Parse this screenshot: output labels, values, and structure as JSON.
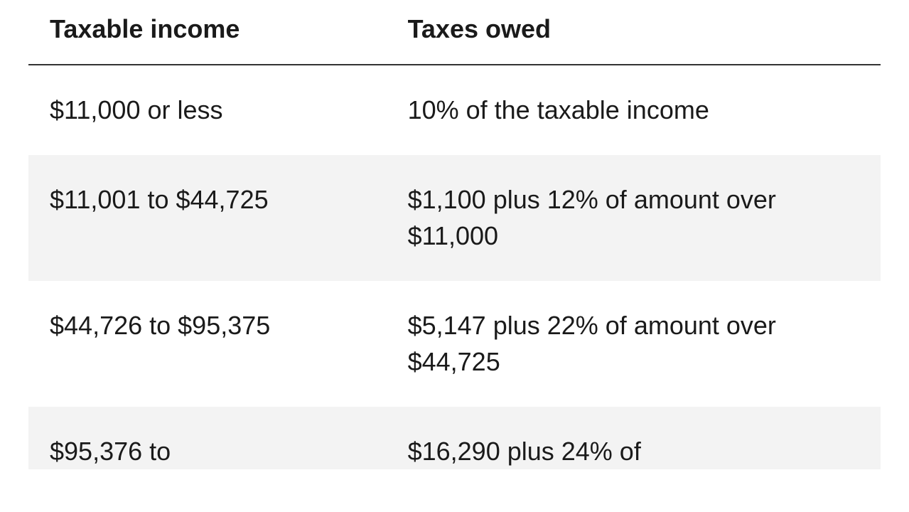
{
  "table": {
    "columns": [
      "Taxable income",
      "Taxes owed"
    ],
    "rows": [
      {
        "income": "$11,000 or less",
        "taxes": "10% of the taxable income",
        "shaded": false
      },
      {
        "income": "$11,001 to $44,725",
        "taxes": "$1,100 plus 12% of amount over $11,000",
        "shaded": true
      },
      {
        "income": "$44,726 to $95,375",
        "taxes": "$5,147 plus 22% of amount over $44,725",
        "shaded": false
      },
      {
        "income": "$95,376 to",
        "taxes": "$16,290 plus 24% of",
        "shaded": true,
        "partial": true
      }
    ],
    "styling": {
      "header_fontsize": 36,
      "header_fontweight": 700,
      "body_fontsize": 36,
      "body_fontweight": 400,
      "text_color": "#1a1a1a",
      "header_border_color": "#333333",
      "header_border_width": 2,
      "shaded_row_color": "#f3f3f3",
      "background_color": "#ffffff",
      "col1_width_pct": 42,
      "col2_width_pct": 58,
      "cell_padding_vertical": 38,
      "cell_padding_horizontal": 30,
      "line_height": 1.4
    }
  }
}
